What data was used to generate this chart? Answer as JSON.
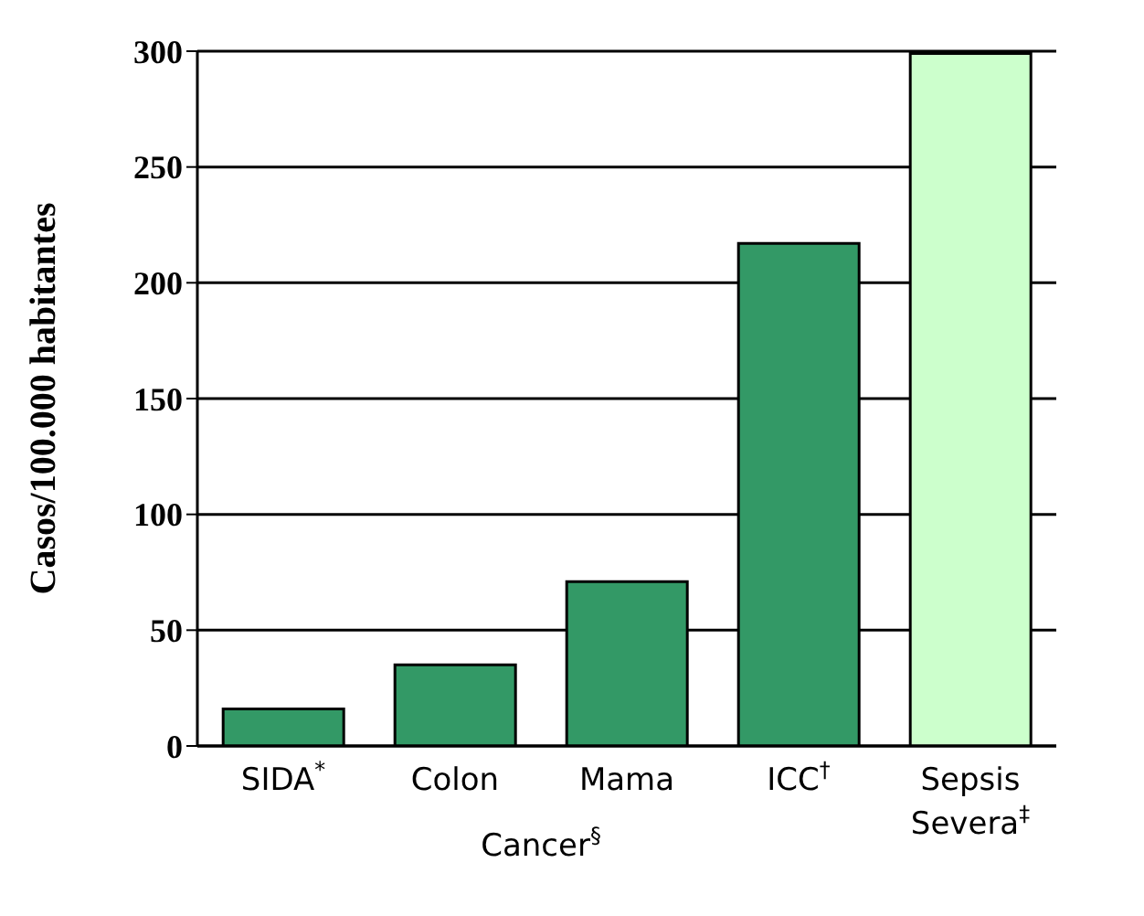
{
  "chart_data": {
    "type": "bar",
    "categories": [
      "SIDA$^{*}$",
      "Colon",
      "Mama",
      "ICC$^{†}$",
      "Sepsis Severa$^{‡}$"
    ],
    "values": [
      16,
      35,
      71,
      217,
      299
    ],
    "colors": [
      "#339966",
      "#339966",
      "#339966",
      "#339966",
      "#ccffcc"
    ],
    "ylabel": "Casos/100.000 habitantes",
    "ylim": [
      0,
      300
    ],
    "yticks": [
      0,
      50,
      100,
      150,
      200,
      250,
      300
    ],
    "grid": "y",
    "annotations": [
      "Cancer$^{§}$"
    ]
  }
}
